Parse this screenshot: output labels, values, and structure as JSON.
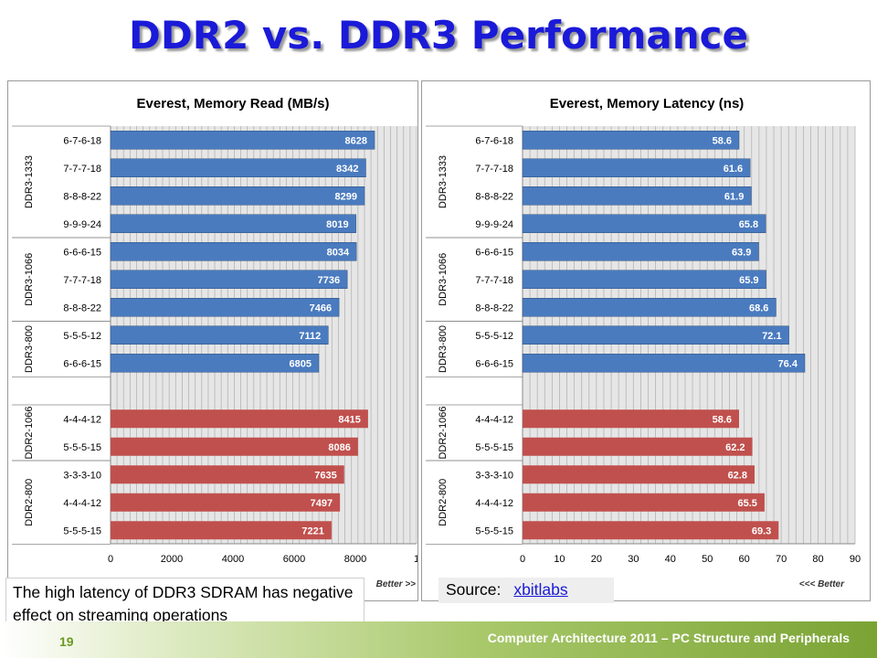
{
  "slide": {
    "title": "DDR2 vs. DDR3 Performance",
    "note": "The high latency of DDR3 SDRAM has negative effect on streaming operations",
    "source_label": "Source:",
    "source_link": "xbitlabs",
    "page_number": "19",
    "footer": "Computer Architecture 2011 – PC Structure and Peripherals"
  },
  "colors": {
    "ddr3": "#4a7bbf",
    "ddr2": "#c0504d",
    "title": "#1a1ad8"
  },
  "chart_data": [
    {
      "type": "bar",
      "orientation": "horizontal",
      "title": "Everest, Memory Read (MB/s)",
      "better_label": "Better >>",
      "xlim": [
        0,
        10000
      ],
      "xticks": [
        "0",
        "2000",
        "4000",
        "6000",
        "8000",
        "1"
      ],
      "grid": true,
      "groups": [
        {
          "name": "DDR3-1333",
          "series": "ddr3",
          "items": [
            {
              "label": "6-7-6-18",
              "value": 8628
            },
            {
              "label": "7-7-7-18",
              "value": 8342
            },
            {
              "label": "8-8-8-22",
              "value": 8299
            },
            {
              "label": "9-9-9-24",
              "value": 8019
            }
          ]
        },
        {
          "name": "DDR3-1066",
          "series": "ddr3",
          "items": [
            {
              "label": "6-6-6-15",
              "value": 8034
            },
            {
              "label": "7-7-7-18",
              "value": 7736
            },
            {
              "label": "8-8-8-22",
              "value": 7466
            }
          ]
        },
        {
          "name": "DDR3-800",
          "series": "ddr3",
          "items": [
            {
              "label": "5-5-5-12",
              "value": 7112
            },
            {
              "label": "6-6-6-15",
              "value": 6805
            }
          ]
        },
        {
          "name": "DDR2-1066",
          "series": "ddr2",
          "items": [
            {
              "label": "4-4-4-12",
              "value": 8415
            },
            {
              "label": "5-5-5-15",
              "value": 8086
            }
          ]
        },
        {
          "name": "DDR2-800",
          "series": "ddr2",
          "items": [
            {
              "label": "3-3-3-10",
              "value": 7635
            },
            {
              "label": "4-4-4-12",
              "value": 7497
            },
            {
              "label": "5-5-5-15",
              "value": 7221
            }
          ]
        }
      ]
    },
    {
      "type": "bar",
      "orientation": "horizontal",
      "title": "Everest, Memory Latency (ns)",
      "better_label": "<<< Better",
      "xlim": [
        0,
        90
      ],
      "xticks": [
        "0",
        "10",
        "20",
        "30",
        "40",
        "50",
        "60",
        "70",
        "80",
        "90"
      ],
      "grid": true,
      "groups": [
        {
          "name": "DDR3-1333",
          "series": "ddr3",
          "items": [
            {
              "label": "6-7-6-18",
              "value": 58.6
            },
            {
              "label": "7-7-7-18",
              "value": 61.6
            },
            {
              "label": "8-8-8-22",
              "value": 61.9
            },
            {
              "label": "9-9-9-24",
              "value": 65.8
            }
          ]
        },
        {
          "name": "DDR3-1066",
          "series": "ddr3",
          "items": [
            {
              "label": "6-6-6-15",
              "value": 63.9
            },
            {
              "label": "7-7-7-18",
              "value": 65.9
            },
            {
              "label": "8-8-8-22",
              "value": 68.6
            }
          ]
        },
        {
          "name": "DDR3-800",
          "series": "ddr3",
          "items": [
            {
              "label": "5-5-5-12",
              "value": 72.1
            },
            {
              "label": "6-6-6-15",
              "value": 76.4
            }
          ]
        },
        {
          "name": "DDR2-1066",
          "series": "ddr2",
          "items": [
            {
              "label": "4-4-4-12",
              "value": 58.6
            },
            {
              "label": "5-5-5-15",
              "value": 62.2
            }
          ]
        },
        {
          "name": "DDR2-800",
          "series": "ddr2",
          "items": [
            {
              "label": "3-3-3-10",
              "value": 62.8
            },
            {
              "label": "4-4-4-12",
              "value": 65.5
            },
            {
              "label": "5-5-5-15",
              "value": 69.3
            }
          ]
        }
      ]
    }
  ]
}
